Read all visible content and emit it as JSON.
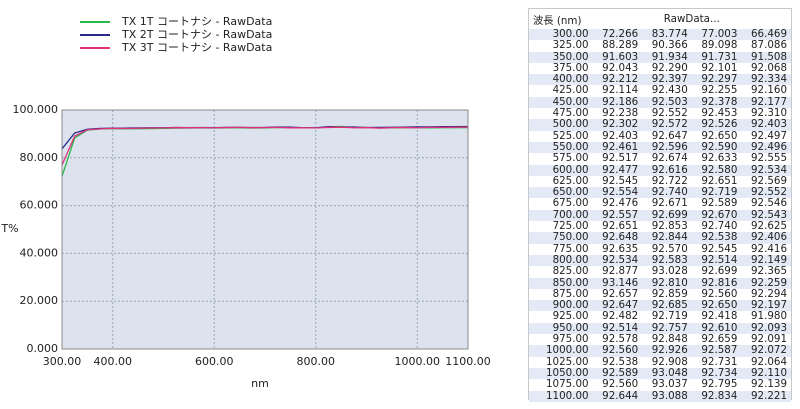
{
  "chart_data": {
    "type": "line",
    "x_label": "nm",
    "y_label": "T%",
    "x": [
      300,
      325,
      350,
      375,
      400,
      425,
      450,
      475,
      500,
      525,
      550,
      575,
      600,
      625,
      650,
      675,
      700,
      725,
      750,
      775,
      800,
      825,
      850,
      875,
      900,
      925,
      950,
      975,
      1000,
      1025,
      1050,
      1075,
      1100
    ],
    "series": [
      {
        "name": "TX 1T コートナシ - RawData",
        "color": "#2db84a",
        "values": [
          72.266,
          88.289,
          91.603,
          92.043,
          92.212,
          92.114,
          92.186,
          92.238,
          92.302,
          92.403,
          92.461,
          92.517,
          92.477,
          92.545,
          92.554,
          92.476,
          92.557,
          92.651,
          92.648,
          92.635,
          92.534,
          92.877,
          93.146,
          92.657,
          92.647,
          92.482,
          92.514,
          92.578,
          92.56,
          92.538,
          92.589,
          92.56,
          92.644
        ]
      },
      {
        "name": "TX 2T コートナシ - RawData",
        "color": "#2a2a8a",
        "values": [
          83.774,
          90.366,
          91.934,
          92.29,
          92.397,
          92.43,
          92.503,
          92.552,
          92.572,
          92.647,
          92.596,
          92.674,
          92.616,
          92.722,
          92.74,
          92.671,
          92.699,
          92.853,
          92.844,
          92.57,
          92.583,
          93.028,
          92.81,
          92.859,
          92.685,
          92.719,
          92.757,
          92.848,
          92.926,
          92.908,
          93.048,
          93.037,
          93.088
        ]
      },
      {
        "name": "TX 3T コートナシ - RawData",
        "color": "#e0307a",
        "values": [
          77.003,
          89.098,
          91.731,
          92.101,
          92.297,
          92.255,
          92.378,
          92.453,
          92.526,
          92.65,
          92.59,
          92.633,
          92.58,
          92.651,
          92.719,
          92.589,
          92.67,
          92.74,
          92.538,
          92.545,
          92.514,
          92.699,
          92.816,
          92.56,
          92.65,
          92.418,
          92.61,
          92.659,
          92.587,
          92.731,
          92.734,
          92.795,
          92.834
        ]
      }
    ],
    "xlim": [
      300,
      1100
    ],
    "xticks": [
      {
        "value": 300,
        "label": "300.00"
      },
      {
        "value": 400,
        "label": "400.00"
      },
      {
        "value": 600,
        "label": "600.00"
      },
      {
        "value": 800,
        "label": "800.00"
      },
      {
        "value": 1000,
        "label": "1000.00"
      },
      {
        "value": 1100,
        "label": "1100.00"
      }
    ],
    "ylim": [
      0,
      100
    ],
    "yticks": [
      {
        "value": 0,
        "label": "0.000"
      },
      {
        "value": 20,
        "label": "20.000"
      },
      {
        "value": 40,
        "label": "40.000"
      },
      {
        "value": 60,
        "label": "60.000"
      },
      {
        "value": 80,
        "label": "80.000"
      },
      {
        "value": 100,
        "label": "100.000"
      }
    ],
    "grid": true
  },
  "table": {
    "header": [
      "波長 (nm)",
      "RawData..."
    ],
    "rows": [
      [
        "300.00",
        "72.266",
        "83.774",
        "77.003",
        "66.469"
      ],
      [
        "325.00",
        "88.289",
        "90.366",
        "89.098",
        "87.086"
      ],
      [
        "350.00",
        "91.603",
        "91.934",
        "91.731",
        "91.508"
      ],
      [
        "375.00",
        "92.043",
        "92.290",
        "92.101",
        "92.068"
      ],
      [
        "400.00",
        "92.212",
        "92.397",
        "92.297",
        "92.334"
      ],
      [
        "425.00",
        "92.114",
        "92.430",
        "92.255",
        "92.160"
      ],
      [
        "450.00",
        "92.186",
        "92.503",
        "92.378",
        "92.177"
      ],
      [
        "475.00",
        "92.238",
        "92.552",
        "92.453",
        "92.310"
      ],
      [
        "500.00",
        "92.302",
        "92.572",
        "92.526",
        "92.403"
      ],
      [
        "525.00",
        "92.403",
        "92.647",
        "92.650",
        "92.497"
      ],
      [
        "550.00",
        "92.461",
        "92.596",
        "92.590",
        "92.496"
      ],
      [
        "575.00",
        "92.517",
        "92.674",
        "92.633",
        "92.555"
      ],
      [
        "600.00",
        "92.477",
        "92.616",
        "92.580",
        "92.534"
      ],
      [
        "625.00",
        "92.545",
        "92.722",
        "92.651",
        "92.569"
      ],
      [
        "650.00",
        "92.554",
        "92.740",
        "92.719",
        "92.552"
      ],
      [
        "675.00",
        "92.476",
        "92.671",
        "92.589",
        "92.546"
      ],
      [
        "700.00",
        "92.557",
        "92.699",
        "92.670",
        "92.543"
      ],
      [
        "725.00",
        "92.651",
        "92.853",
        "92.740",
        "92.625"
      ],
      [
        "750.00",
        "92.648",
        "92.844",
        "92.538",
        "92.406"
      ],
      [
        "775.00",
        "92.635",
        "92.570",
        "92.545",
        "92.416"
      ],
      [
        "800.00",
        "92.534",
        "92.583",
        "92.514",
        "92.149"
      ],
      [
        "825.00",
        "92.877",
        "93.028",
        "92.699",
        "92.365"
      ],
      [
        "850.00",
        "93.146",
        "92.810",
        "92.816",
        "92.259"
      ],
      [
        "875.00",
        "92.657",
        "92.859",
        "92.560",
        "92.294"
      ],
      [
        "900.00",
        "92.647",
        "92.685",
        "92.650",
        "92.197"
      ],
      [
        "925.00",
        "92.482",
        "92.719",
        "92.418",
        "91.980"
      ],
      [
        "950.00",
        "92.514",
        "92.757",
        "92.610",
        "92.093"
      ],
      [
        "975.00",
        "92.578",
        "92.848",
        "92.659",
        "92.091"
      ],
      [
        "1000.00",
        "92.560",
        "92.926",
        "92.587",
        "92.072"
      ],
      [
        "1025.00",
        "92.538",
        "92.908",
        "92.731",
        "92.064"
      ],
      [
        "1050.00",
        "92.589",
        "93.048",
        "92.734",
        "92.110"
      ],
      [
        "1075.00",
        "92.560",
        "93.037",
        "92.795",
        "92.139"
      ],
      [
        "1100.00",
        "92.644",
        "93.088",
        "92.834",
        "92.221"
      ]
    ]
  }
}
